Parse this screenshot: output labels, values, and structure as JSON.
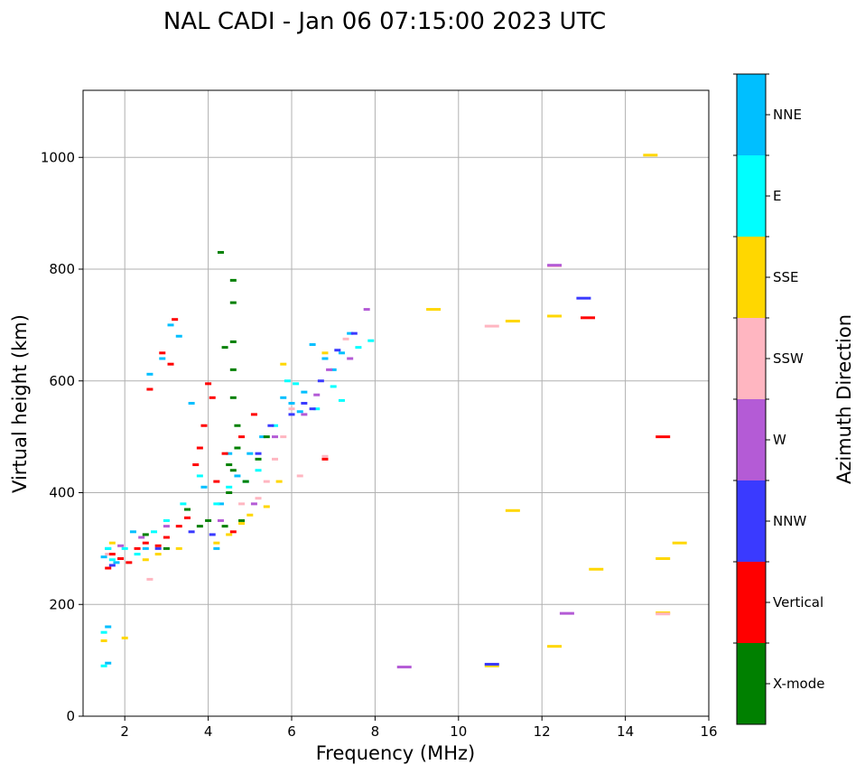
{
  "chart_data": {
    "type": "scatter",
    "title": "NAL CADI - Jan 06 07:15:00 2023 UTC",
    "xlabel": "Frequency (MHz)",
    "ylabel": "Virtual height (km)",
    "xlim": [
      1,
      16
    ],
    "ylim": [
      0,
      1120
    ],
    "xticks": [
      2,
      4,
      6,
      8,
      10,
      12,
      14,
      16
    ],
    "yticks": [
      0,
      200,
      400,
      600,
      800,
      1000
    ],
    "grid": true,
    "colorbar": {
      "label": "Azimuth Direction",
      "categories": [
        {
          "name": "X-mode",
          "color": "#008000"
        },
        {
          "name": "Vertical",
          "color": "#ff0000"
        },
        {
          "name": "NNW",
          "color": "#3a3aff"
        },
        {
          "name": "W",
          "color": "#b45bd6"
        },
        {
          "name": "SSW",
          "color": "#ffb6c1"
        },
        {
          "name": "SSE",
          "color": "#ffd700"
        },
        {
          "name": "E",
          "color": "#00ffff"
        },
        {
          "name": "NNE",
          "color": "#00bfff"
        }
      ]
    },
    "series": [
      {
        "name": "NNE",
        "points": [
          [
            1.5,
            285
          ],
          [
            1.6,
            300
          ],
          [
            1.8,
            275
          ],
          [
            2.2,
            330
          ],
          [
            2.5,
            300
          ],
          [
            2.6,
            612
          ],
          [
            2.9,
            640
          ],
          [
            3.1,
            700
          ],
          [
            3.3,
            680
          ],
          [
            3.6,
            560
          ],
          [
            3.9,
            410
          ],
          [
            4.2,
            300
          ],
          [
            4.3,
            380
          ],
          [
            4.5,
            470
          ],
          [
            4.7,
            430
          ],
          [
            5.0,
            470
          ],
          [
            5.3,
            500
          ],
          [
            5.8,
            570
          ],
          [
            6.0,
            560
          ],
          [
            6.2,
            545
          ],
          [
            6.3,
            580
          ],
          [
            6.5,
            665
          ],
          [
            6.8,
            640
          ],
          [
            7.0,
            620
          ],
          [
            7.2,
            650
          ],
          [
            7.4,
            685
          ],
          [
            1.6,
            95
          ],
          [
            1.6,
            160
          ]
        ]
      },
      {
        "name": "E",
        "points": [
          [
            1.5,
            150
          ],
          [
            1.6,
            300
          ],
          [
            1.7,
            280
          ],
          [
            2.0,
            300
          ],
          [
            2.3,
            290
          ],
          [
            2.7,
            330
          ],
          [
            3.0,
            350
          ],
          [
            3.4,
            380
          ],
          [
            3.8,
            430
          ],
          [
            4.2,
            380
          ],
          [
            4.5,
            410
          ],
          [
            4.9,
            420
          ],
          [
            5.2,
            440
          ],
          [
            5.6,
            520
          ],
          [
            5.9,
            600
          ],
          [
            6.1,
            595
          ],
          [
            6.6,
            550
          ],
          [
            7.0,
            590
          ],
          [
            7.2,
            565
          ],
          [
            7.6,
            660
          ],
          [
            7.9,
            672
          ],
          [
            1.5,
            90
          ]
        ]
      },
      {
        "name": "SSE",
        "points": [
          [
            1.5,
            135
          ],
          [
            1.7,
            310
          ],
          [
            2.0,
            140
          ],
          [
            2.5,
            280
          ],
          [
            2.8,
            290
          ],
          [
            3.3,
            300
          ],
          [
            4.2,
            310
          ],
          [
            4.5,
            325
          ],
          [
            4.8,
            345
          ],
          [
            5.0,
            360
          ],
          [
            5.4,
            375
          ],
          [
            5.7,
            420
          ],
          [
            5.8,
            630
          ],
          [
            6.8,
            650
          ],
          [
            9.4,
            728
          ],
          [
            10.8,
            90
          ],
          [
            11.3,
            707
          ],
          [
            11.3,
            368
          ],
          [
            12.3,
            716
          ],
          [
            12.3,
            125
          ],
          [
            13.3,
            263
          ],
          [
            14.6,
            1004
          ],
          [
            14.9,
            282
          ],
          [
            14.9,
            185
          ],
          [
            15.3,
            310
          ]
        ]
      },
      {
        "name": "SSW",
        "points": [
          [
            1.6,
            290
          ],
          [
            2.6,
            245
          ],
          [
            4.8,
            380
          ],
          [
            5.2,
            390
          ],
          [
            5.4,
            420
          ],
          [
            5.6,
            460
          ],
          [
            5.8,
            500
          ],
          [
            6.0,
            550
          ],
          [
            6.2,
            430
          ],
          [
            6.8,
            465
          ],
          [
            7.3,
            675
          ],
          [
            10.8,
            698
          ],
          [
            12.3,
            806
          ],
          [
            14.9,
            183
          ]
        ]
      },
      {
        "name": "W",
        "points": [
          [
            1.9,
            305
          ],
          [
            2.4,
            320
          ],
          [
            3.0,
            340
          ],
          [
            4.3,
            350
          ],
          [
            5.1,
            380
          ],
          [
            5.6,
            500
          ],
          [
            6.3,
            540
          ],
          [
            6.6,
            575
          ],
          [
            6.9,
            620
          ],
          [
            7.4,
            640
          ],
          [
            7.8,
            728
          ],
          [
            8.7,
            88
          ],
          [
            12.6,
            184
          ],
          [
            12.3,
            807
          ]
        ]
      },
      {
        "name": "NNW",
        "points": [
          [
            1.7,
            270
          ],
          [
            2.8,
            300
          ],
          [
            3.6,
            330
          ],
          [
            4.1,
            325
          ],
          [
            5.2,
            470
          ],
          [
            5.5,
            520
          ],
          [
            6.0,
            540
          ],
          [
            6.3,
            560
          ],
          [
            6.5,
            550
          ],
          [
            6.7,
            600
          ],
          [
            7.1,
            655
          ],
          [
            7.5,
            685
          ],
          [
            10.8,
            93
          ],
          [
            13.0,
            748
          ]
        ]
      },
      {
        "name": "Vertical",
        "points": [
          [
            1.6,
            265
          ],
          [
            1.7,
            290
          ],
          [
            1.9,
            282
          ],
          [
            2.1,
            275
          ],
          [
            2.3,
            300
          ],
          [
            2.5,
            310
          ],
          [
            2.6,
            585
          ],
          [
            2.8,
            305
          ],
          [
            2.9,
            650
          ],
          [
            3.0,
            320
          ],
          [
            3.1,
            630
          ],
          [
            3.2,
            710
          ],
          [
            3.3,
            340
          ],
          [
            3.5,
            355
          ],
          [
            3.7,
            450
          ],
          [
            3.8,
            480
          ],
          [
            3.9,
            520
          ],
          [
            4.0,
            595
          ],
          [
            4.1,
            570
          ],
          [
            4.2,
            420
          ],
          [
            4.4,
            470
          ],
          [
            4.6,
            330
          ],
          [
            4.8,
            500
          ],
          [
            5.1,
            540
          ],
          [
            6.8,
            460
          ],
          [
            13.1,
            713
          ],
          [
            14.9,
            500
          ]
        ]
      },
      {
        "name": "X-mode",
        "points": [
          [
            2.5,
            325
          ],
          [
            3.0,
            300
          ],
          [
            3.5,
            370
          ],
          [
            3.8,
            340
          ],
          [
            4.0,
            350
          ],
          [
            4.3,
            830
          ],
          [
            4.4,
            660
          ],
          [
            4.5,
            400
          ],
          [
            4.6,
            780
          ],
          [
            4.6,
            740
          ],
          [
            4.6,
            670
          ],
          [
            4.6,
            620
          ],
          [
            4.6,
            570
          ],
          [
            4.7,
            520
          ],
          [
            4.7,
            480
          ],
          [
            4.5,
            450
          ],
          [
            4.9,
            420
          ],
          [
            4.8,
            350
          ],
          [
            5.2,
            460
          ],
          [
            5.4,
            500
          ],
          [
            4.6,
            440
          ],
          [
            4.4,
            340
          ]
        ]
      }
    ]
  }
}
